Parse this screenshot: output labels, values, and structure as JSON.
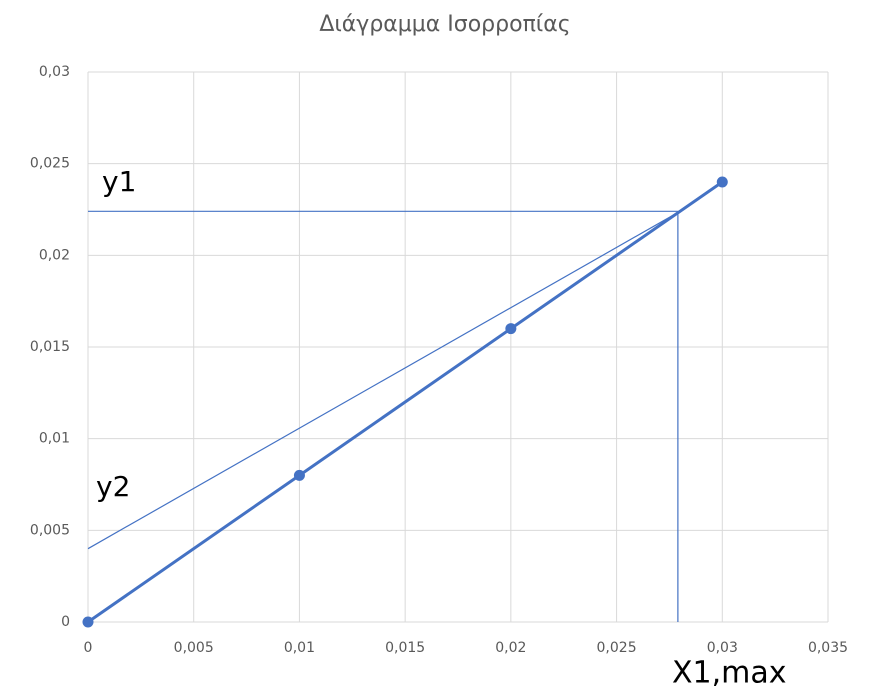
{
  "chart_data": {
    "type": "scatter",
    "title": "Διάγραμμα Ισορροπίας",
    "xlim": [
      0,
      0.035
    ],
    "xticks": [
      0,
      {
        "value": 0.005,
        "label": "0,005"
      },
      {
        "value": 0.01,
        "label": "0,01"
      },
      {
        "value": 0.015,
        "label": "0,015"
      },
      {
        "value": 0.02,
        "label": "0,02"
      },
      {
        "value": 0.025,
        "label": "0,025"
      },
      {
        "value": 0.03,
        "label": "0,03"
      },
      {
        "value": 0.035,
        "label": "0,035"
      }
    ],
    "ylim": [
      0,
      0.03
    ],
    "yticks": [
      0,
      {
        "value": 0.005,
        "label": "0,005"
      },
      {
        "value": 0.01,
        "label": "0,01"
      },
      {
        "value": 0.015,
        "label": "0,015"
      },
      {
        "value": 0.02,
        "label": "0,02"
      },
      {
        "value": 0.025,
        "label": "0,025"
      },
      {
        "value": 0.03,
        "label": "0,03"
      }
    ],
    "grid": true,
    "series": [
      {
        "color": "#4472c4",
        "x": [
          0,
          0.01,
          0.02,
          0.03
        ],
        "values": [
          0,
          0.008,
          0.016,
          0.024
        ],
        "markers": true,
        "line_width": 3
      },
      {
        "color": "#4472c4",
        "x": [
          0,
          0.0283
        ],
        "values": [
          0.004,
          0.0226
        ],
        "markers": false,
        "line_width": 1.2
      },
      {
        "color": "#4472c4",
        "x": [
          0,
          0.0279
        ],
        "values": [
          0.0224,
          0.0224
        ],
        "markers": false,
        "line_width": 1.2
      },
      {
        "color": "#4472c4",
        "x": [
          0.0279,
          0.0279
        ],
        "values": [
          0.0224,
          0
        ],
        "markers": false,
        "line_width": 1.2
      }
    ],
    "annotations": [
      "y1",
      "y2",
      "X1,max"
    ]
  }
}
